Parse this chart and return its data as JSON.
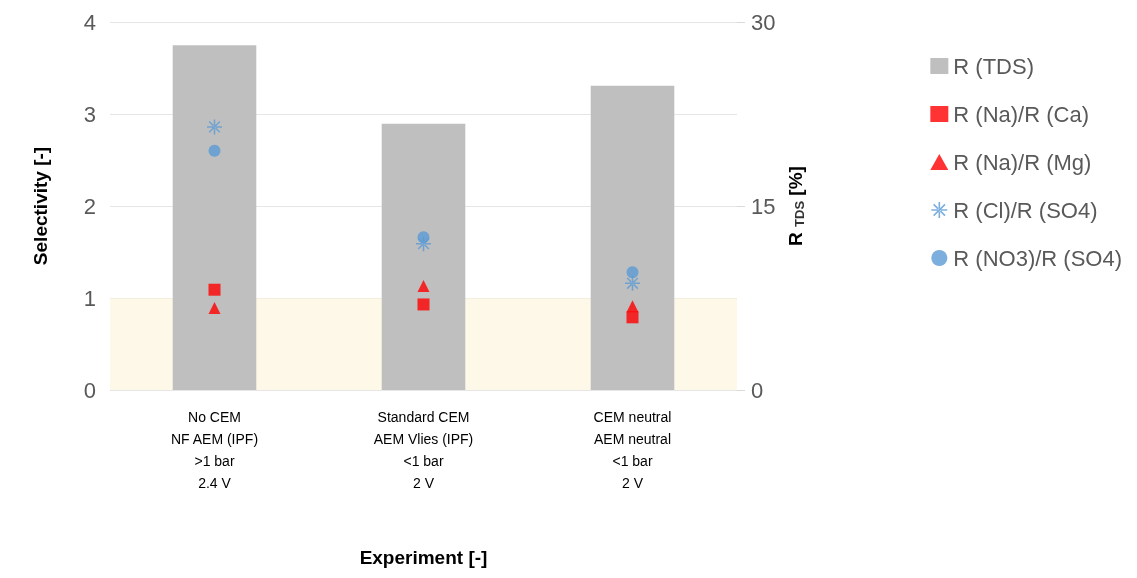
{
  "chart_data": {
    "type": "scatter",
    "xlabel": "Experiment [-]",
    "ylabel": "Selectivity [-]",
    "y2label": "R $_{TDS}$ [%]",
    "categories": [
      "No CEM\nNF AEM (IPF)\n>1 bar\n2.4 V",
      "Standard CEM\nAEM Vlies (IPF)\n<1 bar\n2 V",
      "CEM neutral\nAEM neutral\n<1 bar\n2 V"
    ],
    "series": [
      {
        "name": "R (TDS)",
        "type": "bar",
        "axis": "y2",
        "color": "#bfbfbf",
        "values": [
          28.1,
          21.7,
          24.8
        ]
      },
      {
        "name": "R (Na)/R (Ca)",
        "color": "#ff0000",
        "marker": "square",
        "values": [
          1.09,
          0.93,
          0.79
        ]
      },
      {
        "name": "R (Na)/R (Mg)",
        "color": "#ff0000",
        "marker": "triangle",
        "values": [
          0.89,
          1.13,
          0.91
        ]
      },
      {
        "name": "R (Cl)/R (SO4)",
        "color": "#5b9bd5",
        "marker": "cross",
        "values": [
          2.86,
          1.59,
          1.16
        ]
      },
      {
        "name": "R (NO3)/R (SO4)",
        "color": "#5b9bd5",
        "marker": "circle",
        "values": [
          2.6,
          1.66,
          1.28
        ]
      }
    ],
    "ylim": [
      0,
      4
    ],
    "yticks": [
      0,
      1,
      2,
      3,
      4
    ],
    "y2lim": [
      0,
      30
    ],
    "y2ticks": [
      0,
      15,
      30
    ],
    "bands": [
      {
        "axis": "y",
        "from": 0,
        "to": 1,
        "color": "#fdf3d8"
      }
    ],
    "grid": "y",
    "legend": "right"
  }
}
